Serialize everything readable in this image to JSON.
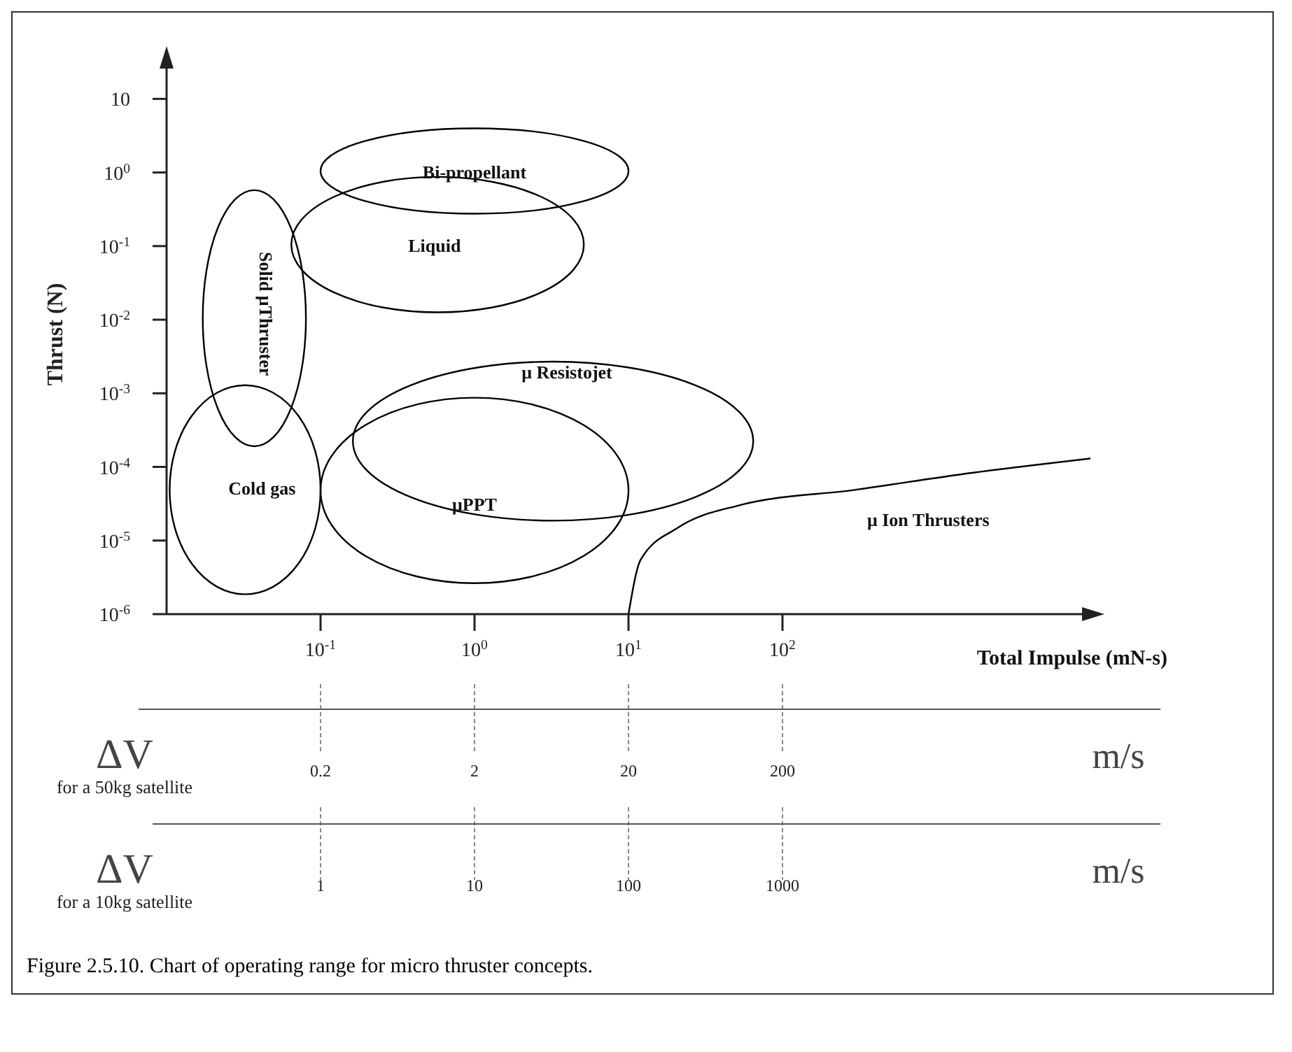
{
  "chart_data": {
    "type": "line",
    "ylabel": "Thrust (N)",
    "xlabel": "Total Impulse (mN-s)",
    "log": "xy",
    "grid": false,
    "legend": false,
    "marker": "none",
    "line_style": "solid",
    "xlim": [
      0.01,
      10000
    ],
    "xticks": [
      {
        "value": 0.1,
        "label": "10$^{-1}$"
      },
      {
        "value": 1,
        "label": "10$^{0}$"
      },
      {
        "value": 10,
        "label": "10$^{1}$"
      },
      {
        "value": 100,
        "label": "10$^{2}$"
      }
    ],
    "ylim": [
      1e-06,
      40
    ],
    "yticks": [
      {
        "value": 1e-06,
        "label": "10$^{-6}$"
      },
      {
        "value": 1e-05,
        "label": "10$^{-5}$"
      },
      {
        "value": 0.0001,
        "label": "10$^{-4}$"
      },
      {
        "value": 0.001,
        "label": "10$^{-3}$"
      },
      {
        "value": 0.01,
        "label": "10$^{-2}$"
      },
      {
        "value": 0.1,
        "label": "10$^{-1}$"
      },
      {
        "value": 1,
        "label": "10$^{0}$"
      },
      10
    ],
    "series": [
      {
        "name": "μ Ion Thrusters",
        "color": "#000000",
        "x": [
          10,
          12,
          21,
          52,
          300,
          1700,
          10000
        ],
        "values": [
          1e-06,
          5.5e-06,
          1.5e-05,
          3e-05,
          4.9e-05,
          8.3e-05,
          0.00013
        ]
      }
    ],
    "annotations": [
      "ΔV for a 50kg satellite",
      "0.2",
      "2",
      "20",
      "200",
      "m/s",
      "ΔV for a 10kg satellite",
      "1",
      "10",
      "100",
      "1000",
      "m/s",
      "Figure 2.5.10. Chart of operating range for micro thruster concepts.",
      "Bi-propellant",
      "Liquid",
      "Solid μThruster",
      "Cold gas",
      "μ Resistojet",
      "μPPT"
    ]
  }
}
